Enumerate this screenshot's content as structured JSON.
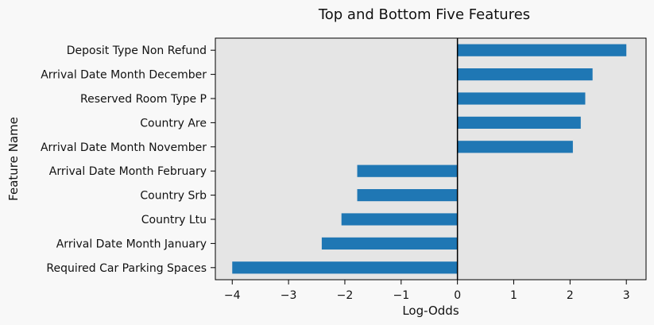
{
  "chart_data": {
    "type": "bar",
    "orientation": "horizontal",
    "title": "Top and Bottom Five Features",
    "xlabel": "Log-Odds",
    "ylabel": "Feature Name",
    "categories": [
      "Deposit Type Non Refund",
      "Arrival Date Month December",
      "Reserved Room Type P",
      "Country Are",
      "Arrival Date Month November",
      "Arrival Date Month February",
      "Country Srb",
      "Country Ltu",
      "Arrival Date Month January",
      "Required Car Parking Spaces"
    ],
    "values": [
      3.0,
      2.4,
      2.27,
      2.19,
      2.05,
      -1.78,
      -1.78,
      -2.06,
      -2.41,
      -4.0
    ],
    "xlim": [
      -4.3,
      3.35
    ],
    "xticks": [
      -4,
      -3,
      -2,
      -1,
      0,
      1,
      2,
      3
    ],
    "xtick_labels": [
      "−4",
      "−3",
      "−2",
      "−1",
      "0",
      "1",
      "2",
      "3"
    ],
    "grid": false,
    "zero_line": true,
    "colors": {
      "bar": "#1f77b4",
      "plot_background": "#e5e5e5",
      "figure_background": "#f8f8f8",
      "axis": "#000000"
    }
  }
}
